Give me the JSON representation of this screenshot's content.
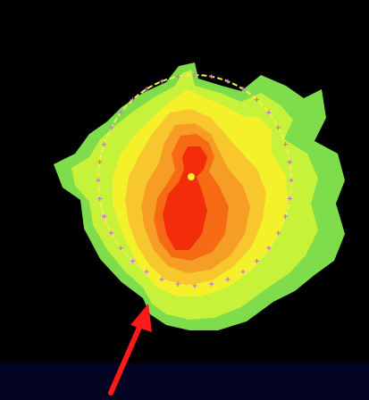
{
  "image": {
    "background_color": "#000000",
    "footer_band_color": "#020222"
  },
  "plot": {
    "colors": {
      "outer": "#7fdc4a",
      "lime": "#c6f23a",
      "yellow": "#f4f12b",
      "light_orange": "#f8c72d",
      "orange": "#f59d24",
      "deep_orange": "#f66a14",
      "red": "#f32c0a",
      "ellipse": "#f0f050",
      "ellipse_markers": "#d070d0",
      "arrow": "#ff1a1a"
    },
    "icons": [
      "pointer-arrow-icon"
    ]
  }
}
